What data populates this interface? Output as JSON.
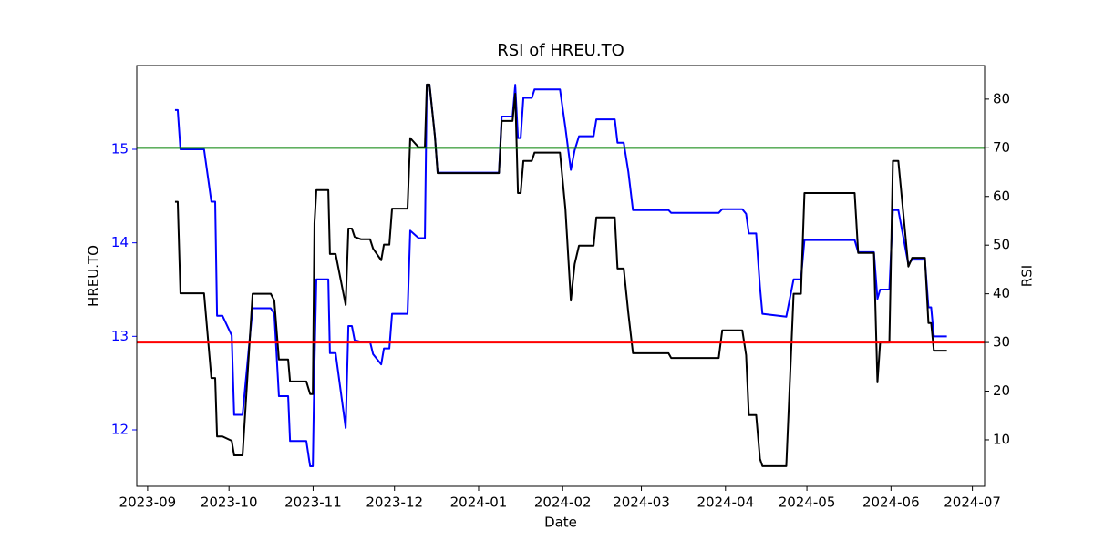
{
  "chart_data": {
    "type": "line",
    "title": "RSI of HREU.TO",
    "xlabel": "Date",
    "ylabel": "HREU.TO",
    "y2label": "RSI",
    "ylabel_color": "#0000ff",
    "xlim": [
      -4,
      308.5
    ],
    "xticks": [
      {
        "value": 0,
        "label": "2023-09"
      },
      {
        "value": 30,
        "label": "2023-10"
      },
      {
        "value": 61,
        "label": "2023-11"
      },
      {
        "value": 91,
        "label": "2023-12"
      },
      {
        "value": 122,
        "label": "2024-01"
      },
      {
        "value": 153,
        "label": "2024-02"
      },
      {
        "value": 182,
        "label": "2024-03"
      },
      {
        "value": 213,
        "label": "2024-04"
      },
      {
        "value": 243,
        "label": "2024-05"
      },
      {
        "value": 274,
        "label": "2024-06"
      },
      {
        "value": 304,
        "label": "2024-07"
      }
    ],
    "ylim": [
      11.396,
      15.896
    ],
    "yticks": [
      12,
      13,
      14,
      15
    ],
    "y2lim": [
      0.45,
      86.9
    ],
    "y2ticks": [
      10,
      20,
      30,
      40,
      50,
      60,
      70,
      80
    ],
    "hlines": [
      {
        "value": 70,
        "color": "#008000",
        "axis": "y2"
      },
      {
        "value": 30,
        "color": "#ff0000",
        "axis": "y2"
      }
    ],
    "x": [
      10.1,
      11.1,
      12.1,
      20.8,
      23.5,
      24.9,
      25.6,
      27.6,
      31.0,
      31.9,
      35.0,
      38.7,
      45.4,
      46.7,
      48.4,
      51.8,
      52.5,
      58.5,
      59.9,
      60.9,
      61.5,
      62.2,
      66.6,
      67.2,
      69.3,
      73.0,
      74.0,
      75.3,
      76.3,
      78.7,
      82.0,
      83.1,
      86.1,
      87.1,
      89.1,
      90.1,
      95.8,
      96.8,
      99.9,
      102.2,
      102.9,
      103.9,
      105.9,
      106.9,
      129.5,
      130.5,
      134.5,
      135.5,
      136.5,
      137.5,
      138.5,
      141.6,
      142.6,
      152.0,
      154.0,
      156.0,
      157.4,
      159.0,
      164.4,
      165.4,
      172.2,
      173.2,
      175.5,
      177.2,
      178.9,
      192.0,
      193.0,
      210.5,
      211.8,
      219.2,
      220.6,
      221.6,
      224.3,
      225.7,
      226.6,
      235.4,
      238.1,
      240.8,
      242.1,
      260.6,
      261.9,
      267.7,
      269.0,
      270.0,
      273.4,
      274.7,
      276.7,
      280.4,
      281.8,
      286.5,
      287.8,
      288.8,
      289.8,
      294.6
    ],
    "series": [
      {
        "color": "#0000ff",
        "values": [
          15.42,
          15.42,
          15.0,
          15.0,
          14.44,
          14.44,
          13.22,
          13.22,
          13.01,
          12.16,
          12.16,
          13.3,
          13.3,
          13.24,
          12.36,
          12.36,
          11.88,
          11.88,
          11.61,
          11.61,
          12.7,
          13.61,
          13.61,
          12.82,
          12.82,
          12.02,
          13.11,
          13.11,
          12.96,
          12.94,
          12.94,
          12.81,
          12.7,
          12.87,
          12.87,
          13.24,
          13.24,
          14.13,
          14.05,
          14.05,
          15.69,
          15.69,
          15.14,
          14.75,
          14.75,
          15.35,
          15.35,
          15.69,
          15.12,
          15.12,
          15.55,
          15.55,
          15.64,
          15.64,
          15.23,
          14.78,
          14.99,
          15.14,
          15.14,
          15.32,
          15.32,
          15.07,
          15.07,
          14.76,
          14.35,
          14.35,
          14.32,
          14.32,
          14.36,
          14.36,
          14.31,
          14.1,
          14.1,
          13.53,
          13.24,
          13.21,
          13.61,
          13.61,
          14.03,
          14.03,
          13.9,
          13.9,
          13.4,
          13.5,
          13.5,
          14.35,
          14.35,
          13.77,
          13.82,
          13.82,
          13.31,
          13.31,
          13.0,
          13.0
        ]
      },
      {
        "color": "#000000",
        "axis": "y2",
        "values": [
          58.9,
          58.9,
          40.1,
          40.1,
          22.7,
          22.7,
          10.7,
          10.7,
          9.8,
          6.8,
          6.8,
          40.0,
          40.0,
          38.6,
          26.5,
          26.5,
          22.0,
          22.0,
          19.4,
          19.4,
          54.5,
          61.3,
          61.3,
          48.2,
          48.2,
          37.7,
          53.4,
          53.4,
          51.7,
          51.2,
          51.2,
          49.3,
          46.9,
          50.1,
          50.1,
          57.5,
          57.5,
          72.0,
          70.1,
          70.1,
          83.0,
          83.0,
          72.3,
          64.8,
          64.8,
          75.5,
          75.5,
          81.1,
          60.7,
          60.7,
          67.3,
          67.3,
          69.0,
          69.0,
          57.4,
          38.6,
          46.1,
          49.9,
          49.9,
          55.7,
          55.7,
          45.2,
          45.2,
          36.0,
          27.8,
          27.8,
          26.8,
          26.8,
          32.5,
          32.5,
          27.4,
          15.1,
          15.1,
          6.1,
          4.6,
          4.6,
          40.0,
          40.0,
          60.7,
          60.7,
          48.4,
          48.4,
          21.8,
          30.0,
          30.0,
          67.3,
          67.3,
          45.6,
          47.4,
          47.4,
          34.0,
          34.0,
          28.3,
          28.3
        ]
      }
    ]
  }
}
